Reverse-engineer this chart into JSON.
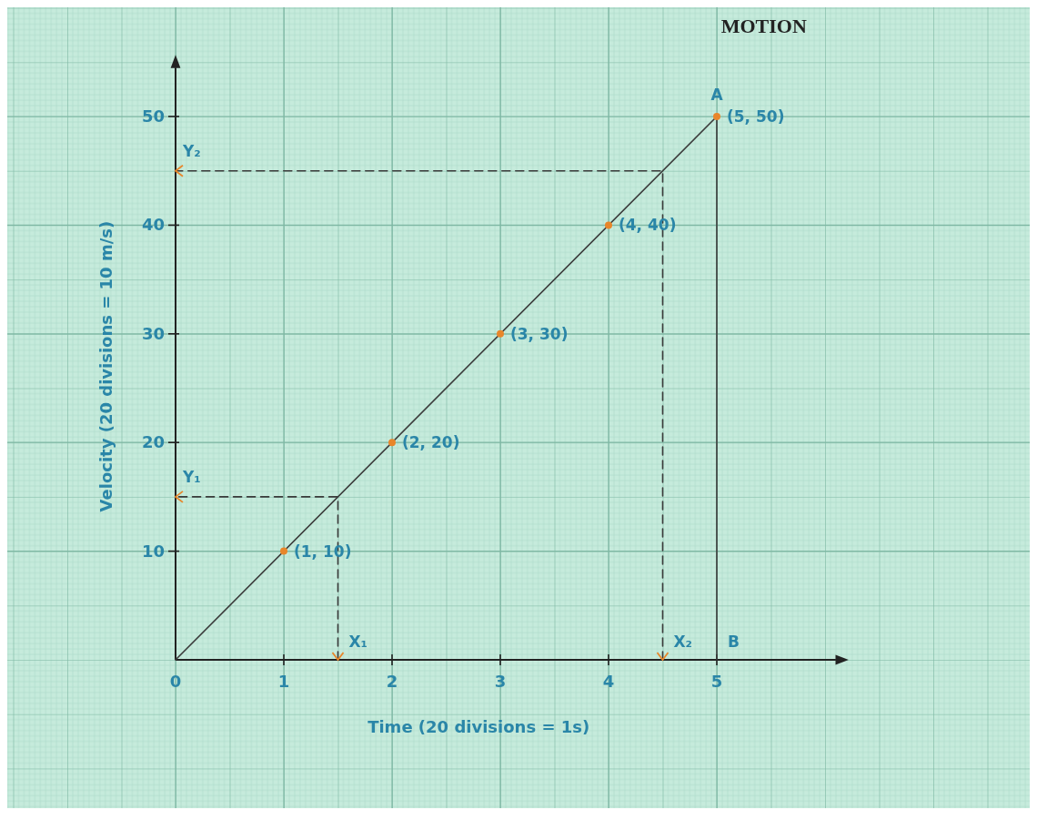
{
  "chart_data": {
    "type": "line",
    "title": "MOTION",
    "xlabel": "Time (20 divisions = 1s)",
    "ylabel": "Velocity (20 divisions = 10 m/s)",
    "xlim": [
      0,
      6.1
    ],
    "ylim": [
      0,
      54.5
    ],
    "xticks": [
      0,
      1,
      2,
      3,
      4,
      5
    ],
    "yticks": [
      10,
      20,
      30,
      40,
      50
    ],
    "grid": true,
    "series": [
      {
        "x": [
          0,
          5
        ],
        "values": [
          0,
          50
        ],
        "color": "#3a3a3a",
        "line_style": "solid"
      },
      {
        "x": [
          1.5,
          1.5,
          0
        ],
        "values": [
          0,
          15,
          15
        ],
        "color": "#3a3a3a",
        "line_style": "dashed"
      },
      {
        "x": [
          4.5,
          4.5,
          0
        ],
        "values": [
          0,
          45,
          45
        ],
        "color": "#3a3a3a",
        "line_style": "dashed"
      },
      {
        "x": [
          5,
          5
        ],
        "values": [
          50,
          0
        ],
        "color": "#3a3a3a",
        "line_style": "solid"
      },
      {
        "type": "scatter",
        "x": [
          1,
          2,
          3,
          4,
          5
        ],
        "values": [
          10,
          20,
          30,
          40,
          50
        ],
        "color": "#e8862a",
        "marker": "circle",
        "value_labels": [
          "(1, 10)",
          "(2, 20)",
          "(3, 30)",
          "(4, 40)",
          "(5, 50)"
        ]
      }
    ],
    "annotations": [
      {
        "text": "A",
        "x": 5,
        "y": 50
      },
      {
        "text": "B",
        "x": 5,
        "y": 0
      },
      {
        "text": "X₁",
        "x": 1.5,
        "y": 0
      },
      {
        "text": "X₂",
        "x": 4.5,
        "y": 0
      },
      {
        "text": "Y₁",
        "x": 0,
        "y": 15
      },
      {
        "text": "Y₂",
        "x": 0,
        "y": 45
      }
    ]
  }
}
